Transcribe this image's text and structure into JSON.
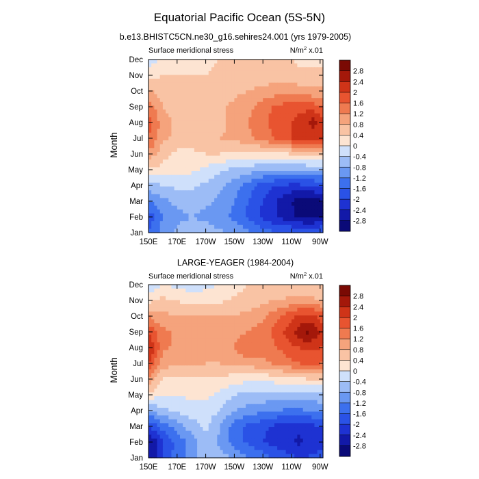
{
  "figure": {
    "title": "Equatorial Pacific Ocean (5S-5N)"
  },
  "colorscale": {
    "levels": [
      -2.8,
      -2.4,
      -2,
      -1.6,
      -1.2,
      -0.8,
      -0.4,
      0,
      0.4,
      0.8,
      1.2,
      1.6,
      2,
      2.4,
      2.8
    ],
    "level_labels": [
      "-2.8",
      "-2.4",
      "-2",
      "-1.6",
      "-1.2",
      "-0.8",
      "-0.4",
      "0",
      "0.4",
      "0.8",
      "1.2",
      "1.6",
      "2",
      "2.4",
      "2.8"
    ],
    "colors": [
      "#0a0a78",
      "#1219a8",
      "#1e32d2",
      "#2a52e6",
      "#3c70ee",
      "#6a98f2",
      "#9cbcf6",
      "#cfe0fb",
      "#fde4d2",
      "#f9c3a4",
      "#f5a37c",
      "#ef7a50",
      "#e85430",
      "#cf3418",
      "#a4180a",
      "#7a0a04"
    ]
  },
  "chart_data": [
    {
      "type": "heatmap",
      "subtitle": "b.e13.BHISTC5CN.ne30_g16.sehires24.001 (yrs 1979-2005)",
      "left_label": "Surface meridional stress",
      "units_label": "N/m",
      "units_sup": "2",
      "units_scale": " x.01",
      "ylabel": "Month",
      "x_ticks": [
        "150E",
        "170E",
        "170W",
        "150W",
        "130W",
        "110W",
        "90W"
      ],
      "x_tick_lons": [
        150,
        170,
        190,
        210,
        230,
        250,
        270
      ],
      "y_ticks": [
        "Jan",
        "Feb",
        "Mar",
        "Apr",
        "May",
        "Jun",
        "Jul",
        "Aug",
        "Sep",
        "Oct",
        "Nov",
        "Dec"
      ],
      "x_range": [
        150,
        272
      ],
      "y_range": [
        1,
        12
      ],
      "grid": false,
      "legend": "right",
      "lons": [
        150,
        154,
        160,
        170,
        180,
        190,
        200,
        210,
        220,
        230,
        240,
        250,
        255,
        260,
        265,
        270,
        272
      ],
      "values": [
        [
          -1.6,
          -1.4,
          -1.0,
          -0.7,
          -0.6,
          -0.6,
          -0.7,
          -0.9,
          -1.1,
          -1.4,
          -1.6,
          -1.6,
          -1.5,
          -1.5,
          -1.5,
          -1.5,
          -1.5
        ],
        [
          -1.8,
          -1.6,
          -1.2,
          -0.9,
          -0.8,
          -0.9,
          -1.1,
          -1.3,
          -1.7,
          -2.1,
          -2.4,
          -2.7,
          -2.9,
          -3.0,
          -3.0,
          -2.9,
          -2.8
        ],
        [
          -1.3,
          -1.1,
          -0.9,
          -0.7,
          -0.6,
          -0.7,
          -0.9,
          -1.2,
          -1.6,
          -2.0,
          -2.4,
          -2.8,
          -3.0,
          -3.1,
          -3.0,
          -2.9,
          -2.8
        ],
        [
          -0.6,
          -0.5,
          -0.4,
          -0.3,
          -0.3,
          -0.5,
          -0.7,
          -1.0,
          -1.4,
          -1.8,
          -2.0,
          -2.1,
          -2.1,
          -2.0,
          -2.0,
          -1.9,
          -1.9
        ],
        [
          0.2,
          0.3,
          0.3,
          0.2,
          0.1,
          -0.1,
          -0.3,
          -0.5,
          -0.6,
          -0.7,
          -0.8,
          -0.8,
          -0.8,
          -0.7,
          -0.7,
          -0.7,
          -0.7
        ],
        [
          1.1,
          0.9,
          0.5,
          0.3,
          0.3,
          0.4,
          0.4,
          0.3,
          0.2,
          0.3,
          0.3,
          0.4,
          0.4,
          0.4,
          0.4,
          0.4,
          0.4
        ],
        [
          1.6,
          1.4,
          0.9,
          0.7,
          0.6,
          0.7,
          0.8,
          0.9,
          1.1,
          1.4,
          1.7,
          2.0,
          2.1,
          2.2,
          2.2,
          2.1,
          2.0
        ],
        [
          1.8,
          1.5,
          1.0,
          0.7,
          0.6,
          0.6,
          0.7,
          0.9,
          1.2,
          1.5,
          1.8,
          2.0,
          2.1,
          2.2,
          2.6,
          2.2,
          2.0
        ],
        [
          1.5,
          1.2,
          0.8,
          0.6,
          0.6,
          0.6,
          0.7,
          0.9,
          1.1,
          1.4,
          1.7,
          1.8,
          1.9,
          1.9,
          1.8,
          1.7,
          1.6
        ],
        [
          0.9,
          0.8,
          0.6,
          0.5,
          0.5,
          0.5,
          0.6,
          0.7,
          0.8,
          0.9,
          1.0,
          1.0,
          1.0,
          1.0,
          0.9,
          0.9,
          0.9
        ],
        [
          0.3,
          0.3,
          0.4,
          0.4,
          0.4,
          0.4,
          0.5,
          0.5,
          0.6,
          0.6,
          0.6,
          0.6,
          0.5,
          0.5,
          0.5,
          0.5,
          0.5
        ],
        [
          -0.2,
          -0.1,
          0.2,
          0.3,
          0.3,
          0.3,
          0.4,
          0.4,
          0.4,
          0.4,
          0.4,
          0.4,
          0.3,
          0.3,
          0.3,
          0.3,
          0.3
        ]
      ]
    },
    {
      "type": "heatmap",
      "subtitle": "LARGE-YEAGER (1984-2004)",
      "left_label": "Surface meridional stress",
      "units_label": "N/m",
      "units_sup": "2",
      "units_scale": " x.01",
      "ylabel": "Month",
      "x_ticks": [
        "150E",
        "170E",
        "170W",
        "150W",
        "130W",
        "110W",
        "90W"
      ],
      "x_tick_lons": [
        150,
        170,
        190,
        210,
        230,
        250,
        270
      ],
      "y_ticks": [
        "Jan",
        "Feb",
        "Mar",
        "Apr",
        "May",
        "Jun",
        "Jul",
        "Aug",
        "Sep",
        "Oct",
        "Nov",
        "Dec"
      ],
      "x_range": [
        150,
        272
      ],
      "y_range": [
        1,
        12
      ],
      "grid": false,
      "legend": "right",
      "lons": [
        150,
        154,
        160,
        170,
        180,
        190,
        200,
        210,
        220,
        230,
        240,
        250,
        255,
        260,
        265,
        270,
        272
      ],
      "values": [
        [
          -2.6,
          -2.5,
          -1.9,
          -1.4,
          -1.0,
          -0.5,
          -0.6,
          -0.9,
          -1.2,
          -1.4,
          -1.7,
          -1.9,
          -2.0,
          -2.0,
          -1.9,
          -1.8,
          -1.8
        ],
        [
          -2.8,
          -2.6,
          -2.0,
          -1.5,
          -1.0,
          -0.5,
          -0.9,
          -1.4,
          -1.7,
          -2.0,
          -2.2,
          -2.4,
          -2.5,
          -2.4,
          -2.3,
          -2.2,
          -2.2
        ],
        [
          -2.0,
          -1.8,
          -1.4,
          -1.0,
          -0.6,
          -0.3,
          -0.8,
          -1.4,
          -1.7,
          -1.9,
          -2.1,
          -2.2,
          -2.3,
          -2.2,
          -2.1,
          -2.0,
          -2.0
        ],
        [
          -0.8,
          -0.7,
          -0.5,
          -0.3,
          -0.2,
          -0.2,
          -0.4,
          -0.8,
          -1.0,
          -1.1,
          -1.2,
          -1.3,
          -1.3,
          -1.2,
          -1.2,
          -1.1,
          -1.1
        ],
        [
          0.3,
          0.2,
          0.0,
          0.0,
          0.1,
          0.1,
          -0.1,
          -0.4,
          -0.5,
          -0.5,
          -0.6,
          -0.6,
          -0.6,
          -0.6,
          -0.5,
          -0.5,
          -0.5
        ],
        [
          1.1,
          0.8,
          0.4,
          0.3,
          0.3,
          0.4,
          0.3,
          0.2,
          0.1,
          0.1,
          0.2,
          0.3,
          0.3,
          0.4,
          0.4,
          0.4,
          0.4
        ],
        [
          2.0,
          1.6,
          1.0,
          0.9,
          0.9,
          0.8,
          0.8,
          0.9,
          1.0,
          1.1,
          1.3,
          1.5,
          1.6,
          1.7,
          1.7,
          1.6,
          1.6
        ],
        [
          2.5,
          2.0,
          1.3,
          1.1,
          1.1,
          0.9,
          1.0,
          1.2,
          1.6,
          1.3,
          1.6,
          1.9,
          2.0,
          2.1,
          2.1,
          2.0,
          1.9
        ],
        [
          2.0,
          1.7,
          1.3,
          1.1,
          1.0,
          0.9,
          1.0,
          1.1,
          1.2,
          1.4,
          1.8,
          2.3,
          2.6,
          2.9,
          2.7,
          2.4,
          2.2
        ],
        [
          1.2,
          1.0,
          0.9,
          0.8,
          0.8,
          0.8,
          0.8,
          0.8,
          0.9,
          1.1,
          1.5,
          1.9,
          2.1,
          2.2,
          2.1,
          1.9,
          1.8
        ],
        [
          0.2,
          0.4,
          0.5,
          0.4,
          0.2,
          0.2,
          0.3,
          0.5,
          0.6,
          0.7,
          0.8,
          0.9,
          0.9,
          0.9,
          0.9,
          0.8,
          0.8
        ],
        [
          -0.4,
          -0.2,
          0.0,
          -0.1,
          -0.2,
          -0.1,
          0.0,
          0.2,
          0.4,
          0.5,
          0.5,
          0.5,
          0.4,
          0.4,
          0.4,
          0.4,
          0.4
        ]
      ]
    }
  ]
}
